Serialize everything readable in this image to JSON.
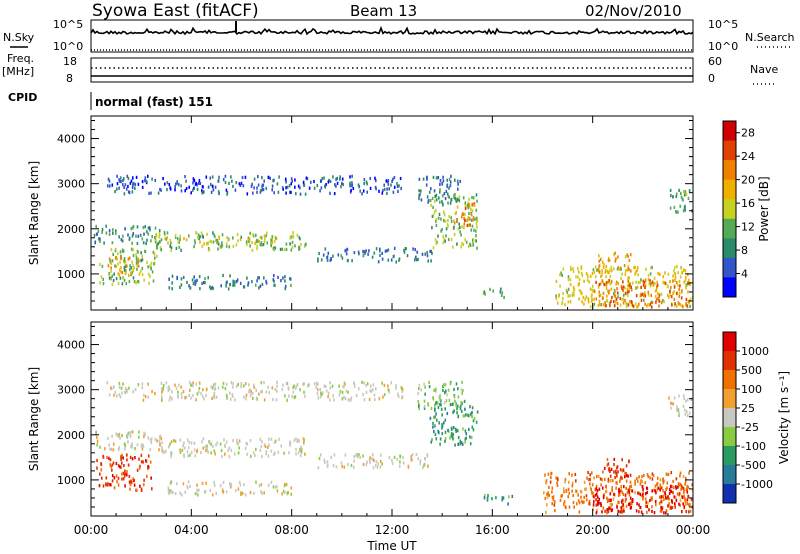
{
  "header": {
    "station": "Syowa East (fitACF)",
    "beam": "Beam 13",
    "date": "02/Nov/2010"
  },
  "labels": {
    "nsky": "N.Sky",
    "nsearch": "N.Search",
    "freq": "Freq.",
    "mhz": "[MHz]",
    "nave": "Nave",
    "cpid": "CPID",
    "cpid_value": "normal (fast) 151"
  },
  "noise_panel": {
    "left_ticks": [
      "10^5",
      "10^0"
    ],
    "right_ticks": [
      "10^5",
      "10^0"
    ]
  },
  "freq_panel": {
    "left_ticks": [
      "18",
      "8"
    ],
    "right_ticks": [
      "60",
      "0"
    ]
  },
  "chart_data": [
    {
      "type": "heatmap",
      "name": "power",
      "ylabel": "Slant Range [km]",
      "xlabel": "Time UT",
      "x_ticks": [
        "00:00",
        "04:00",
        "08:00",
        "12:00",
        "16:00",
        "20:00",
        "00:00"
      ],
      "y_ticks": [
        "1000",
        "2000",
        "3000",
        "4000"
      ],
      "ylim": [
        200,
        4500
      ],
      "xlim_hours": [
        0,
        24
      ],
      "colorbar": {
        "label": "Power [dB]",
        "ticks": [
          "4",
          "8",
          "12",
          "16",
          "20",
          "24",
          "28"
        ],
        "range": [
          0,
          30
        ],
        "colors": [
          "#0000ff",
          "#3355cc",
          "#2a8a6a",
          "#55aa55",
          "#c8d020",
          "#f0b000",
          "#f08000",
          "#e04000",
          "#d00000"
        ]
      },
      "regions": [
        {
          "t0": 0.1,
          "t1": 3.0,
          "r0": 1700,
          "r1": 2100,
          "v": 8
        },
        {
          "t0": 0.3,
          "t1": 2.6,
          "r0": 800,
          "r1": 1600,
          "v": 12
        },
        {
          "t0": 0.6,
          "t1": 2.0,
          "r0": 1000,
          "r1": 1400,
          "v": 20
        },
        {
          "t0": 2.5,
          "t1": 8.6,
          "r0": 1550,
          "r1": 1950,
          "v": 12
        },
        {
          "t0": 3.0,
          "t1": 7.5,
          "r0": 1700,
          "r1": 1850,
          "v": 16
        },
        {
          "t0": 3.0,
          "t1": 8.0,
          "r0": 700,
          "r1": 1000,
          "v": 6
        },
        {
          "t0": 9.0,
          "t1": 13.6,
          "r0": 1300,
          "r1": 1600,
          "v": 6
        },
        {
          "t0": 13.5,
          "t1": 15.4,
          "r0": 1600,
          "r1": 2800,
          "v": 12
        },
        {
          "t0": 14.4,
          "t1": 15.3,
          "r0": 2100,
          "r1": 2600,
          "v": 22
        },
        {
          "t0": 15.6,
          "t1": 16.5,
          "r0": 500,
          "r1": 700,
          "v": 10
        },
        {
          "t0": 18.5,
          "t1": 24.0,
          "r0": 300,
          "r1": 1200,
          "v": 16
        },
        {
          "t0": 20.0,
          "t1": 23.8,
          "r0": 300,
          "r1": 900,
          "v": 24
        },
        {
          "t0": 20.2,
          "t1": 21.5,
          "r0": 1000,
          "r1": 1500,
          "v": 20
        },
        {
          "t0": 23.0,
          "t1": 24.0,
          "r0": 2400,
          "r1": 2900,
          "v": 10
        },
        {
          "t0": 13.0,
          "t1": 14.8,
          "r0": 2600,
          "r1": 3200,
          "v": 6
        },
        {
          "t0": 0.6,
          "t1": 12.5,
          "r0": 2800,
          "r1": 3200,
          "v": 4
        }
      ]
    },
    {
      "type": "heatmap",
      "name": "velocity",
      "ylabel": "Slant Range [km]",
      "xlabel": "Time UT",
      "x_ticks": [
        "00:00",
        "04:00",
        "08:00",
        "12:00",
        "16:00",
        "20:00",
        "00:00"
      ],
      "y_ticks": [
        "1000",
        "2000",
        "3000",
        "4000"
      ],
      "ylim": [
        200,
        4500
      ],
      "xlim_hours": [
        0,
        24
      ],
      "colorbar": {
        "label": "Velocity [m s⁻¹]",
        "ticks": [
          "1000",
          "500",
          "100",
          "25",
          "-25",
          "-100",
          "-500",
          "-1000"
        ],
        "colors": [
          "#1030b0",
          "#2a7a9a",
          "#2a9a60",
          "#88cc44",
          "#c8c8c0",
          "#f0a030",
          "#f07000",
          "#e03000",
          "#e00000"
        ]
      },
      "regions": [
        {
          "t0": 0.1,
          "t1": 3.0,
          "r0": 1700,
          "r1": 2100,
          "v": 4
        },
        {
          "t0": 0.2,
          "t1": 2.4,
          "r0": 800,
          "r1": 1600,
          "v": 7
        },
        {
          "t0": 2.5,
          "t1": 8.6,
          "r0": 1550,
          "r1": 1950,
          "v": 4
        },
        {
          "t0": 3.0,
          "t1": 8.0,
          "r0": 700,
          "r1": 1000,
          "v": 4
        },
        {
          "t0": 9.0,
          "t1": 13.6,
          "r0": 1300,
          "r1": 1600,
          "v": 4
        },
        {
          "t0": 13.5,
          "t1": 15.4,
          "r0": 1800,
          "r1": 2800,
          "v": 2
        },
        {
          "t0": 15.6,
          "t1": 16.8,
          "r0": 500,
          "r1": 700,
          "v": 2
        },
        {
          "t0": 18.0,
          "t1": 24.0,
          "r0": 300,
          "r1": 1200,
          "v": 6
        },
        {
          "t0": 20.0,
          "t1": 23.8,
          "r0": 300,
          "r1": 900,
          "v": 8
        },
        {
          "t0": 20.2,
          "t1": 21.5,
          "r0": 1000,
          "r1": 1500,
          "v": 7
        },
        {
          "t0": 23.0,
          "t1": 24.0,
          "r0": 2400,
          "r1": 2900,
          "v": 4
        },
        {
          "t0": 13.0,
          "t1": 14.8,
          "r0": 2600,
          "r1": 3200,
          "v": 3
        },
        {
          "t0": 0.6,
          "t1": 12.5,
          "r0": 2800,
          "r1": 3200,
          "v": 4
        }
      ]
    }
  ]
}
